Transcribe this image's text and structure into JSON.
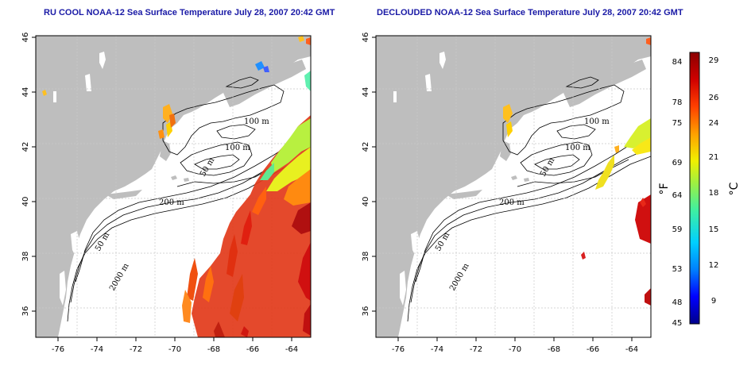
{
  "panels": [
    {
      "title": "RU COOL NOAA-12 Sea Surface Temperature July 28, 2007 20:42 GMT"
    },
    {
      "title": "DECLOUDED NOAA-12 Sea Surface Temperature July 28, 2007 20:42 GMT"
    }
  ],
  "map": {
    "x_ticks": [
      "-76",
      "-74",
      "-72",
      "-70",
      "-68",
      "-66",
      "-64"
    ],
    "y_ticks": [
      "46",
      "44",
      "42",
      "40",
      "38",
      "36"
    ],
    "contour_labels": [
      "100 m",
      "100 m",
      "50 m",
      "200 m",
      "50 m",
      "2000 m"
    ]
  },
  "colorbar": {
    "fahrenheit_ticks": [
      "84",
      "78",
      "75",
      "69",
      "64",
      "59",
      "53",
      "48",
      "45"
    ],
    "celsius_ticks": [
      "29",
      "26",
      "24",
      "21",
      "18",
      "15",
      "12",
      "9"
    ],
    "fahrenheit_label": "°F",
    "celsius_label": "°C",
    "colors": [
      "#00008b",
      "#0000ff",
      "#0080ff",
      "#00d0ff",
      "#40f0a0",
      "#a0f040",
      "#f0f000",
      "#ffa000",
      "#ff4000",
      "#d00000",
      "#8b0000"
    ]
  },
  "colors": {
    "land": "#bebebe",
    "ocean": "#ffffff",
    "grid": "#c8c8c8",
    "title": "#1a1aa6"
  }
}
